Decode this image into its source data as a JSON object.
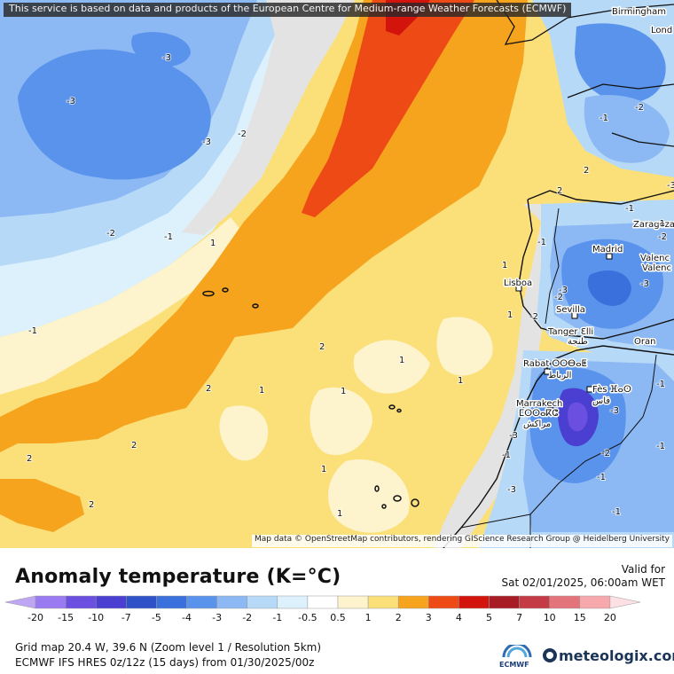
{
  "notice": "This service is based on data and products of the European Centre for Medium-range Weather Forecasts (ECMWF)",
  "attribution": "Map data © OpenStreetMap contributors, rendering GIScience Research Group @ Heidelberg University",
  "legend": {
    "title": "Anomaly temperature (K=°C)",
    "valid_label": "Valid for",
    "valid_time": "Sat 02/01/2025, 06:00am WET",
    "ticks": [
      "-20",
      "-15",
      "-10",
      "-7",
      "-5",
      "-4",
      "-3",
      "-2",
      "-1",
      "-0.5",
      "0.5",
      "1",
      "2",
      "3",
      "4",
      "5",
      "7",
      "10",
      "15",
      "20"
    ],
    "colors": [
      "#bfa6f5",
      "#9a7af0",
      "#6a4fe0",
      "#4a3fd0",
      "#2f52c8",
      "#3a70dc",
      "#5a93ec",
      "#8cb8f4",
      "#b6d9f8",
      "#ddf1fc",
      "#ffffff",
      "#fdf3cc",
      "#fbe07a",
      "#f6a31e",
      "#ee4a15",
      "#d2140c",
      "#a81c25",
      "#c43a45",
      "#e4747c",
      "#f7a8ac",
      "#fde0e4"
    ]
  },
  "footer": {
    "grid": "Grid map 20.4 W, 39.6 N (Zoom level 1 / Resolution 5km)",
    "model": "ECMWF IFS HRES 0z/12z (15 days) from  01/30/2025/00z",
    "ecmwf": "ECMWF",
    "brand": "meteologix.com"
  },
  "cities": [
    {
      "name": "Birmingham"
    },
    {
      "name": "Lond"
    },
    {
      "name": "Zaragoza"
    },
    {
      "name": "Madrid"
    },
    {
      "name": "Valenc"
    },
    {
      "name": "Valenc"
    },
    {
      "name": "Lisboa"
    },
    {
      "name": "Sevilla"
    },
    {
      "name": "Tanger Ɛlli"
    },
    {
      "name": "طنجة"
    },
    {
      "name": "Oran"
    },
    {
      "name": "Rabat ⵔⵔⴱⴰⵟ"
    },
    {
      "name": "الرباط"
    },
    {
      "name": "Fès ⴼⴰⵙ"
    },
    {
      "name": "فاس"
    },
    {
      "name": "Marrakech"
    },
    {
      "name": "ⵎⵔⵔⴰⴽⵛ"
    },
    {
      "name": "مراكش"
    }
  ],
  "contour_labels": [
    "-3",
    "-3",
    "-3",
    "-2",
    "-2",
    "-1",
    "-1",
    "1",
    "1",
    "1",
    "1",
    "1",
    "1",
    "1",
    "2",
    "2",
    "2",
    "2",
    "2",
    "-1",
    "-1",
    "-2",
    "-2",
    "-3",
    "-3",
    "1",
    "-1",
    "-2",
    "-3",
    "-1",
    "-3",
    "-1",
    "-1",
    "-2",
    "-3",
    "-1",
    "-3",
    "-1",
    "1",
    "2",
    "2",
    "-2",
    "-1"
  ]
}
